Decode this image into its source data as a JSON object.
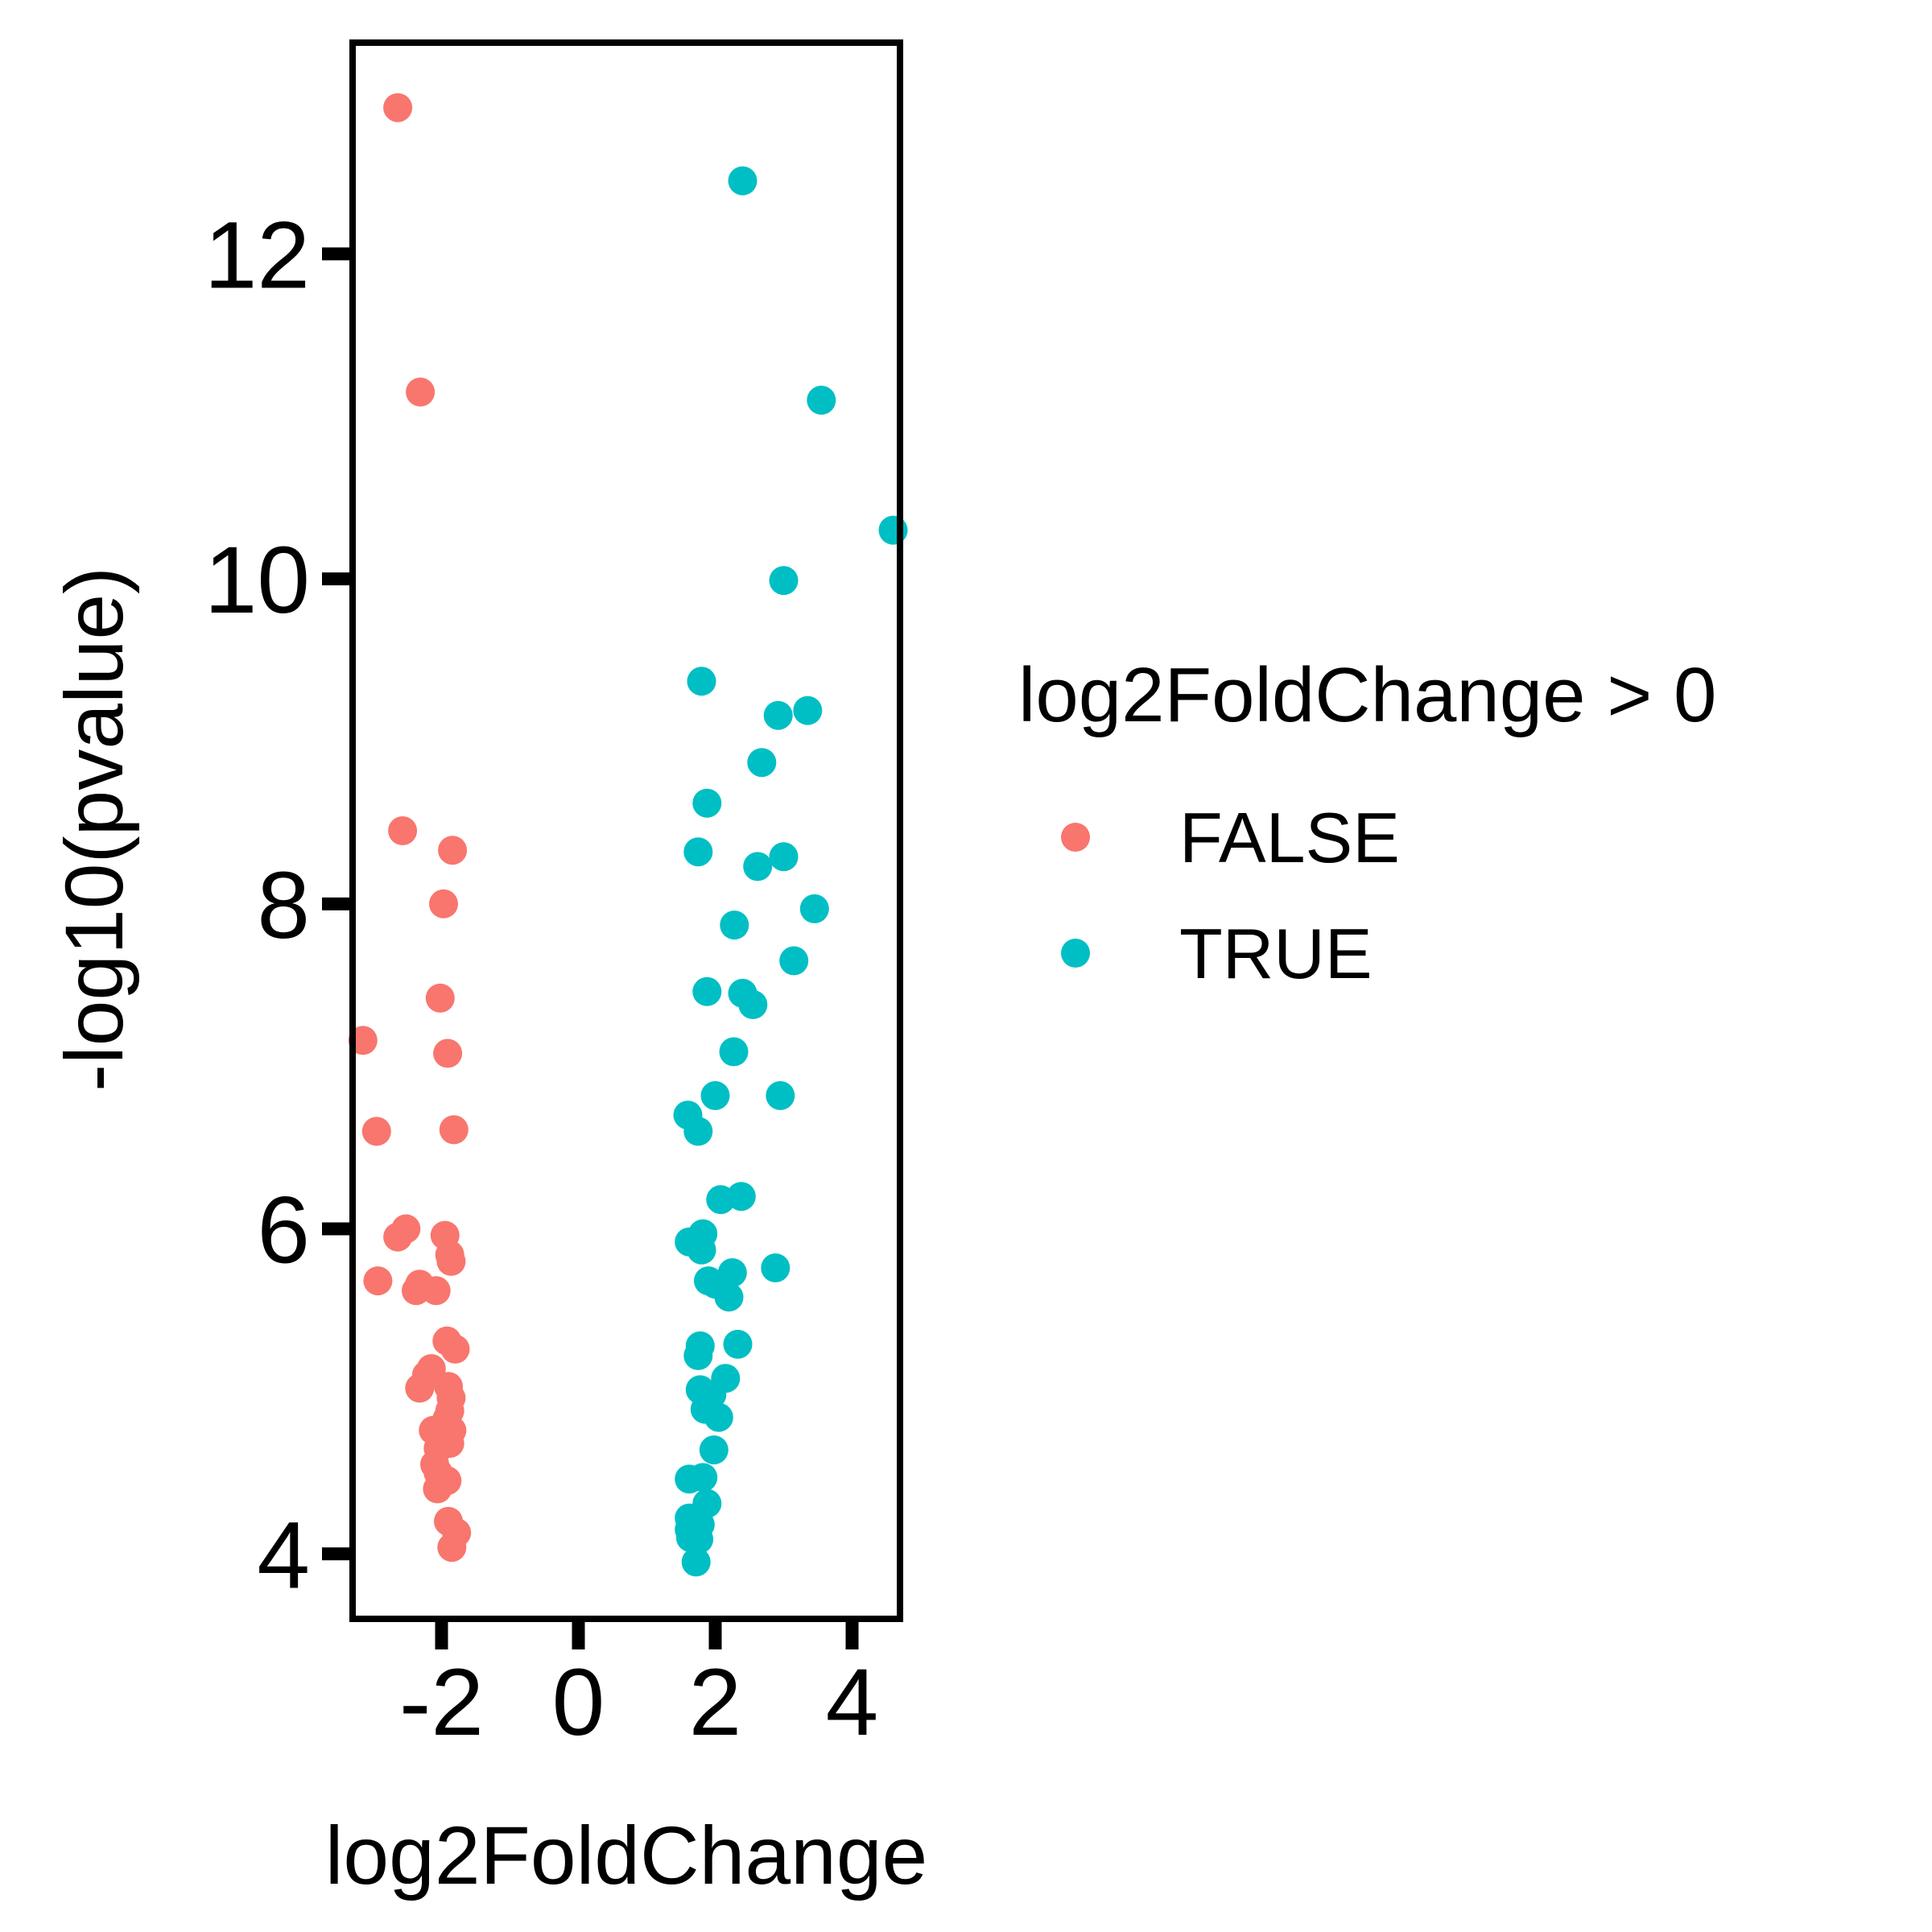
{
  "chart_data": {
    "type": "scatter",
    "title": "",
    "xlabel": "log2FoldChange",
    "ylabel": "-log10(pvalue)",
    "xlim": [
      -3.3,
      4.7
    ],
    "ylim": [
      3.6,
      13.3
    ],
    "x_ticks": [
      -2,
      0,
      2,
      4
    ],
    "y_ticks": [
      4,
      6,
      8,
      10,
      12
    ],
    "x_tick_labels": [
      "-2",
      "0",
      "2",
      "4"
    ],
    "y_tick_labels": [
      "4",
      "6",
      "8",
      "10",
      12
    ],
    "grid": false,
    "legend": {
      "title": "log2FoldChange > 0",
      "placement": "right",
      "entries": [
        "FALSE",
        "TRUE"
      ]
    },
    "series": [
      {
        "name": "FALSE",
        "color": "#F8766D",
        "points": [
          [
            -2.64,
            12.9
          ],
          [
            -2.31,
            11.15
          ],
          [
            -2.57,
            8.45
          ],
          [
            -1.84,
            8.33
          ],
          [
            -1.97,
            8.0
          ],
          [
            -2.02,
            7.42
          ],
          [
            -1.91,
            7.08
          ],
          [
            -3.15,
            7.16
          ],
          [
            -2.95,
            6.6
          ],
          [
            -1.82,
            6.61
          ],
          [
            -2.52,
            6.0
          ],
          [
            -2.64,
            5.95
          ],
          [
            -1.95,
            5.96
          ],
          [
            -1.88,
            5.84
          ],
          [
            -1.86,
            5.8
          ],
          [
            -2.93,
            5.68
          ],
          [
            -2.32,
            5.66
          ],
          [
            -2.37,
            5.62
          ],
          [
            -2.08,
            5.62
          ],
          [
            -1.92,
            5.31
          ],
          [
            -1.8,
            5.26
          ],
          [
            -2.15,
            5.14
          ],
          [
            -2.22,
            5.1
          ],
          [
            -2.32,
            5.02
          ],
          [
            -1.9,
            5.03
          ],
          [
            -1.86,
            4.96
          ],
          [
            -1.88,
            4.88
          ],
          [
            -1.92,
            4.83
          ],
          [
            -2.12,
            4.76
          ],
          [
            -1.85,
            4.76
          ],
          [
            -1.98,
            4.7
          ],
          [
            -2.05,
            4.65
          ],
          [
            -1.88,
            4.68
          ],
          [
            -2.1,
            4.55
          ],
          [
            -2.05,
            4.5
          ],
          [
            -1.92,
            4.45
          ],
          [
            -2.06,
            4.4
          ],
          [
            -1.9,
            4.2
          ],
          [
            -1.78,
            4.13
          ],
          [
            -1.85,
            4.04
          ]
        ]
      },
      {
        "name": "TRUE",
        "color": "#00BFC4",
        "points": [
          [
            2.4,
            12.45
          ],
          [
            3.55,
            11.1
          ],
          [
            4.6,
            10.3
          ],
          [
            3.0,
            9.99
          ],
          [
            1.8,
            9.37
          ],
          [
            3.35,
            9.19
          ],
          [
            2.92,
            9.16
          ],
          [
            2.68,
            8.87
          ],
          [
            1.88,
            8.62
          ],
          [
            1.75,
            8.32
          ],
          [
            3.0,
            8.29
          ],
          [
            2.62,
            8.23
          ],
          [
            3.45,
            7.97
          ],
          [
            2.28,
            7.87
          ],
          [
            3.15,
            7.65
          ],
          [
            1.88,
            7.46
          ],
          [
            2.4,
            7.45
          ],
          [
            2.55,
            7.38
          ],
          [
            2.27,
            7.09
          ],
          [
            2.0,
            6.82
          ],
          [
            2.95,
            6.82
          ],
          [
            1.6,
            6.7
          ],
          [
            1.75,
            6.6
          ],
          [
            2.08,
            6.18
          ],
          [
            2.38,
            6.2
          ],
          [
            1.62,
            5.92
          ],
          [
            1.82,
            5.97
          ],
          [
            1.8,
            5.87
          ],
          [
            2.88,
            5.76
          ],
          [
            2.25,
            5.73
          ],
          [
            1.9,
            5.68
          ],
          [
            2.0,
            5.66
          ],
          [
            2.2,
            5.58
          ],
          [
            1.78,
            5.28
          ],
          [
            2.33,
            5.29
          ],
          [
            1.75,
            5.22
          ],
          [
            2.15,
            5.08
          ],
          [
            1.78,
            5.01
          ],
          [
            1.95,
            4.98
          ],
          [
            1.85,
            4.89
          ],
          [
            2.05,
            4.84
          ],
          [
            1.98,
            4.64
          ],
          [
            1.62,
            4.46
          ],
          [
            1.82,
            4.47
          ],
          [
            1.88,
            4.31
          ],
          [
            1.62,
            4.22
          ],
          [
            1.78,
            4.18
          ],
          [
            1.62,
            4.15
          ],
          [
            1.7,
            4.12
          ],
          [
            1.76,
            4.09
          ],
          [
            1.64,
            4.1
          ],
          [
            1.72,
            3.95
          ]
        ]
      }
    ]
  }
}
